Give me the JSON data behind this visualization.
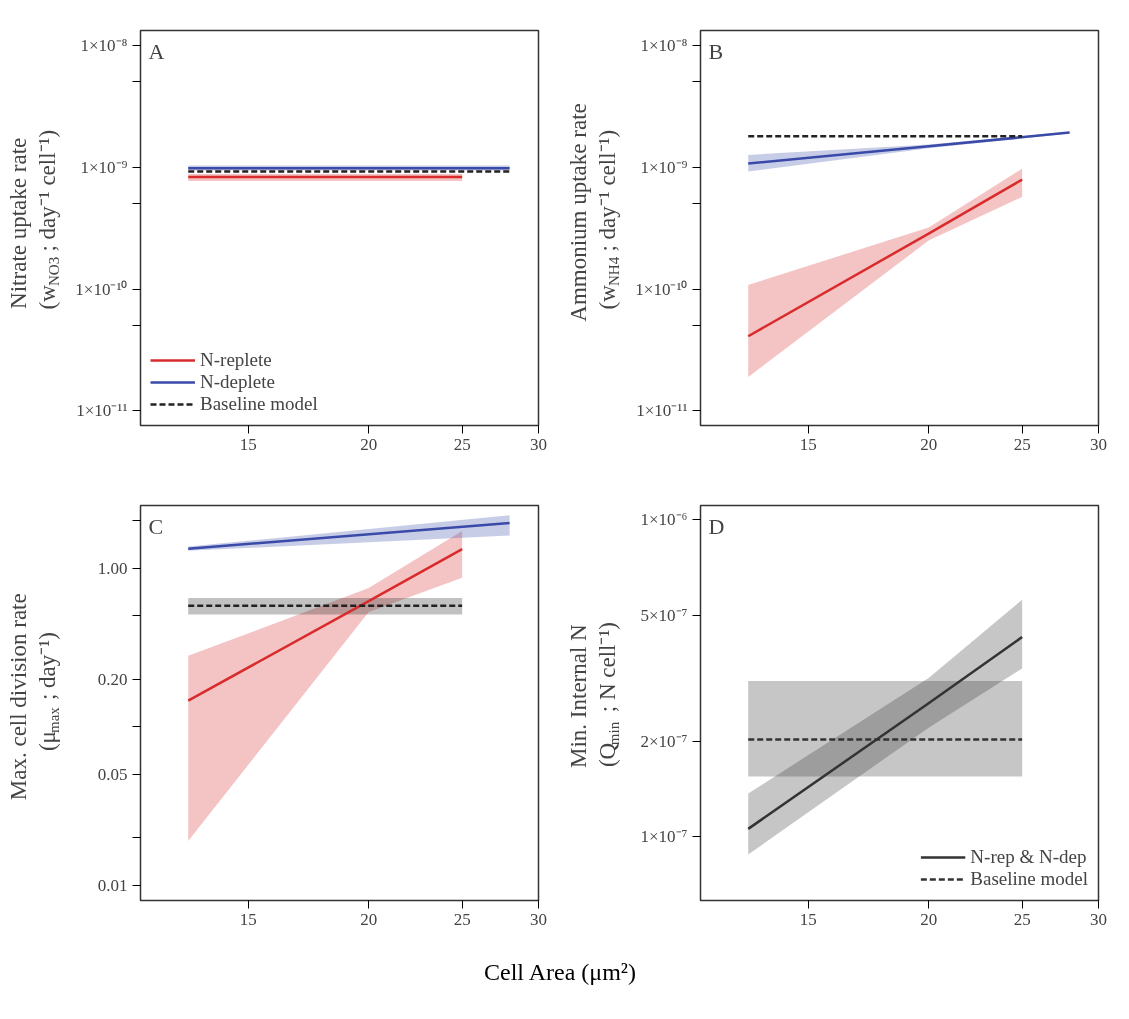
{
  "chart_data": [
    {
      "type": "line",
      "title": "A",
      "ylabel": "Nitrate uptake rate\n(w$_{NO3}$ ; day⁻¹ cell⁻¹)",
      "log": "xy",
      "grid": false,
      "legend": "bottom left",
      "xlim": [
        11.6,
        30
      ],
      "xticks": [
        15,
        20,
        25,
        30
      ],
      "ylim": [
        7.6e-12,
        1.32e-08
      ],
      "yticks": [
        {
          "value": 1e-11,
          "label": "1×10⁻¹¹"
        },
        {
          "value": 5e-11,
          "label": null
        },
        {
          "value": 1e-10,
          "label": "1×10⁻¹⁰"
        },
        {
          "value": 5e-10,
          "label": null
        },
        {
          "value": 1e-09,
          "label": "1×10⁻⁹"
        },
        {
          "value": 5e-09,
          "label": null
        },
        {
          "value": 1e-08,
          "label": "1×10⁻⁸"
        }
      ],
      "series": [
        {
          "name": "N-replete",
          "color": "#d92b2b",
          "x": [
            13,
            25
          ],
          "values": [
            8.3e-10,
            8.3e-10
          ],
          "lower": [
            7.7e-10,
            7.7e-10
          ],
          "upper": [
            8.8e-10,
            8.8e-10
          ]
        },
        {
          "name": "N-deplete",
          "color": "#3a4aa8",
          "x": [
            13,
            28
          ],
          "values": [
            9.8e-10,
            9.8e-10
          ],
          "lower": [
            9.4e-10,
            9.4e-10
          ],
          "upper": [
            1.03e-09,
            1.03e-09
          ]
        },
        {
          "name": "Baseline model",
          "color": "#222222",
          "line_style": "dashed",
          "x": [
            13,
            28
          ],
          "values": [
            9.2e-10,
            9.2e-10
          ]
        }
      ]
    },
    {
      "type": "line",
      "title": "B",
      "ylabel": "Ammonium uptake rate\n(w$_{NH4}$ ; day⁻¹ cell⁻¹)",
      "log": "xy",
      "grid": false,
      "xlim": [
        11.6,
        30
      ],
      "xticks": [
        15,
        20,
        25,
        30
      ],
      "ylim": [
        7.6e-12,
        1.32e-08
      ],
      "yticks": [
        {
          "value": 1e-11,
          "label": "1×10⁻¹¹"
        },
        {
          "value": 5e-11,
          "label": null
        },
        {
          "value": 1e-10,
          "label": "1×10⁻¹⁰"
        },
        {
          "value": 5e-10,
          "label": null
        },
        {
          "value": 1e-09,
          "label": "1×10⁻⁹"
        },
        {
          "value": 5e-09,
          "label": null
        },
        {
          "value": 1e-08,
          "label": "1×10⁻⁸"
        }
      ],
      "series": [
        {
          "color": "#d92b2b",
          "x": [
            13,
            20,
            25
          ],
          "values": [
            4.1e-11,
            2.85e-10,
            7.9e-10
          ],
          "lower": [
            1.9e-11,
            2.5e-10,
            5.7e-10
          ],
          "upper": [
            1.08e-10,
            3.2e-10,
            9.7e-10
          ]
        },
        {
          "color": "#3a4aa8",
          "x": [
            13,
            20,
            28
          ],
          "values": [
            1.07e-09,
            1.48e-09,
            1.92e-09
          ],
          "lower": [
            9.2e-10,
            1.43e-09,
            1.89e-09
          ],
          "upper": [
            1.26e-09,
            1.53e-09,
            1.95e-09
          ]
        },
        {
          "color": "#222222",
          "line_style": "dashed",
          "x": [
            13,
            25
          ],
          "values": [
            1.79e-09,
            1.79e-09
          ]
        }
      ]
    },
    {
      "type": "line",
      "title": "C",
      "ylabel": "Max. cell division rate\n(μ$_{max}$ ; day⁻¹)",
      "log": "xy",
      "grid": false,
      "xlim": [
        11.6,
        30
      ],
      "xticks": [
        15,
        20,
        25,
        30
      ],
      "ylim": [
        0.008,
        2.49
      ],
      "yticks": [
        {
          "value": 0.01,
          "label": "0.01"
        },
        {
          "value": 0.02,
          "label": null
        },
        {
          "value": 0.05,
          "label": "0.05"
        },
        {
          "value": 0.1,
          "label": null
        },
        {
          "value": 0.2,
          "label": "0.20"
        },
        {
          "value": 0.5,
          "label": null
        },
        {
          "value": 1,
          "label": "1.00"
        },
        {
          "value": 2,
          "label": null
        }
      ],
      "series": [
        {
          "color": "#d92b2b",
          "x": [
            13,
            20,
            25
          ],
          "values": [
            0.146,
            0.62,
            1.32
          ],
          "lower": [
            0.019,
            0.53,
            0.87
          ],
          "upper": [
            0.28,
            0.75,
            1.72
          ]
        },
        {
          "color": "#3a4aa8",
          "x": [
            13,
            28
          ],
          "values": [
            1.33,
            1.93
          ],
          "lower": [
            1.29,
            1.61
          ],
          "upper": [
            1.37,
            2.16
          ]
        },
        {
          "color": "#222222",
          "line_style": "dashed",
          "x": [
            13,
            25
          ],
          "values": [
            0.58,
            0.58
          ],
          "lower": [
            0.51,
            0.51
          ],
          "upper": [
            0.65,
            0.65
          ]
        }
      ]
    },
    {
      "type": "line",
      "title": "D",
      "ylabel": "Min. Internal N\n(Q$_{min}$ ; N cell⁻¹)",
      "xlabel": "Cell Area (μm²)",
      "log": "xy",
      "grid": false,
      "legend": "bottom right",
      "xlim": [
        11.6,
        30
      ],
      "xticks": [
        15,
        20,
        25,
        30
      ],
      "ylim": [
        6.3e-08,
        1.11e-06
      ],
      "yticks": [
        {
          "value": 1e-07,
          "label": "1×10⁻⁷"
        },
        {
          "value": 2e-07,
          "label": "2×10⁻⁷"
        },
        {
          "value": 5e-07,
          "label": "5×10⁻⁷"
        },
        {
          "value": 1e-06,
          "label": "1×10⁻⁶"
        }
      ],
      "series": [
        {
          "name": "N-rep & N-dep",
          "color": "#333333",
          "x": [
            13,
            20,
            25
          ],
          "values": [
            1.06e-07,
            2.64e-07,
            4.27e-07
          ],
          "lower": [
            8.8e-08,
            2.21e-07,
            3.4e-07
          ],
          "upper": [
            1.37e-07,
            3.17e-07,
            5.6e-07
          ]
        },
        {
          "name": "Baseline model",
          "color": "#333333",
          "line_style": "dashed",
          "x": [
            13,
            25
          ],
          "values": [
            2.03e-07,
            2.03e-07
          ],
          "lower": [
            1.55e-07,
            1.55e-07
          ],
          "upper": [
            3.1e-07,
            3.1e-07
          ]
        }
      ]
    }
  ]
}
